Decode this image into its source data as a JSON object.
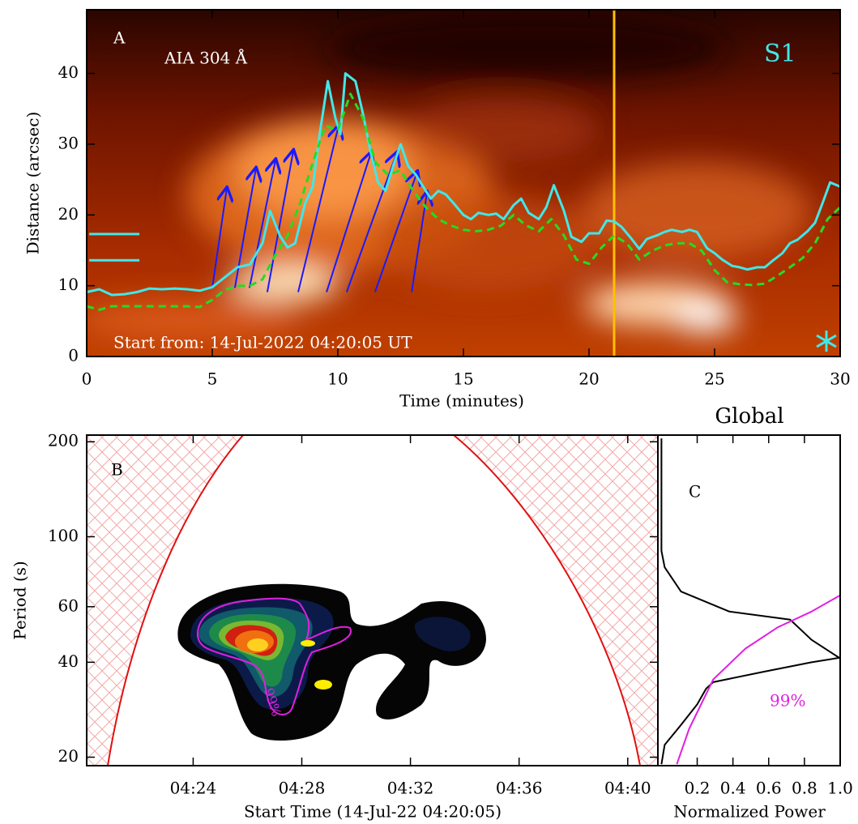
{
  "chart_data": [
    {
      "type": "line",
      "label": "A",
      "annotations": [
        {
          "text": "AIA 304 Å",
          "color": "#ffffff"
        },
        {
          "text": "S1",
          "color": "#40e8e8"
        },
        {
          "text": "Start from: 14-Jul-2022 04:20:05 UT",
          "color": "#ffffff"
        }
      ],
      "xlabel": "Time (minutes)",
      "ylabel": "Distance (arcsec)",
      "xlim": [
        0,
        30
      ],
      "ylim": [
        0,
        49
      ],
      "xticks": [
        0,
        5,
        10,
        15,
        20,
        25,
        30
      ],
      "yticks": [
        0,
        10,
        20,
        30,
        40
      ],
      "series": [
        {
          "color": "#40e8e8",
          "style": "solid",
          "x": [
            0,
            0.5,
            1,
            1.5,
            2,
            2.5,
            3,
            3.5,
            4,
            4.5,
            5,
            5.5,
            6,
            6.5,
            7,
            7.3,
            7.7,
            8,
            8.3,
            8.7,
            9,
            9.3,
            9.6,
            9.9,
            10.1,
            10.3,
            10.7,
            11,
            11.3,
            11.6,
            11.9,
            12.2,
            12.5,
            12.8,
            13.1,
            13.4,
            13.7,
            14,
            14.3,
            14.6,
            15,
            15.3,
            15.6,
            16,
            16.3,
            16.6,
            17,
            17.3,
            17.6,
            18,
            18.3,
            18.6,
            19,
            19.3,
            19.7,
            20,
            20.4,
            20.7,
            21,
            21.3,
            21.7,
            22,
            22.3,
            22.7,
            23,
            23.3,
            23.7,
            24,
            24.3,
            24.7,
            25,
            25.3,
            25.7,
            26,
            26.3,
            26.7,
            27,
            27.3,
            27.7,
            28,
            28.3,
            28.7,
            29,
            29.3,
            29.6,
            30
          ],
          "values": [
            9.1,
            9.5,
            8.7,
            8.8,
            9.1,
            9.6,
            9.5,
            9.6,
            9.5,
            9.3,
            9.8,
            11.2,
            12.6,
            13,
            16,
            20.6,
            17,
            15.4,
            16,
            21.7,
            24,
            32,
            38.9,
            33.7,
            31.4,
            40,
            38.9,
            34.3,
            29,
            24.6,
            23.4,
            26.9,
            30,
            26.9,
            25.7,
            24,
            22.3,
            23.4,
            22.9,
            21.7,
            20,
            19.4,
            20.3,
            20,
            20.2,
            19.4,
            21.4,
            22.3,
            20.3,
            19.4,
            21.1,
            24.2,
            20.6,
            16.9,
            16.2,
            17.4,
            17.4,
            19.2,
            19.1,
            18.3,
            16.6,
            15.2,
            16.6,
            17.1,
            17.6,
            17.9,
            17.6,
            17.9,
            17.6,
            15.3,
            14.6,
            13.7,
            12.8,
            12.6,
            12.3,
            12.6,
            12.6,
            13.5,
            14.6,
            16,
            16.5,
            17.7,
            18.9,
            21.7,
            24.6,
            24
          ]
        },
        {
          "color": "#22dd22",
          "style": "dashed",
          "x": [
            0,
            0.5,
            1,
            2,
            3,
            4,
            4.5,
            5,
            5.5,
            6,
            6.5,
            7,
            7.5,
            8,
            8.5,
            9,
            9.5,
            10,
            10.5,
            11,
            11.5,
            12,
            12.5,
            13,
            13.5,
            14,
            14.5,
            15,
            15.5,
            16,
            16.5,
            17,
            17.5,
            18,
            18.5,
            19,
            19.5,
            20,
            20.5,
            21,
            21.5,
            22,
            22.5,
            23,
            23.5,
            24,
            24.5,
            25,
            25.5,
            26,
            26.5,
            27,
            27.5,
            28,
            28.5,
            29,
            29.5,
            30
          ],
          "values": [
            7.1,
            6.6,
            7.1,
            7.1,
            7.1,
            7.1,
            7,
            8,
            9.4,
            10,
            10,
            10.9,
            14.3,
            17.1,
            21.7,
            27.4,
            32.6,
            32,
            37.1,
            33.7,
            27.4,
            25.7,
            26.3,
            23.4,
            21.1,
            19.4,
            18.5,
            17.9,
            17.7,
            17.9,
            18.5,
            20,
            18.5,
            17.7,
            19.4,
            17.1,
            13.7,
            13.1,
            15.4,
            17.1,
            16,
            13.7,
            14.9,
            15.7,
            16,
            16,
            14.9,
            12.2,
            10.5,
            10.2,
            10.1,
            10.3,
            11.4,
            12.6,
            13.9,
            16,
            19.4,
            21.1
          ]
        }
      ],
      "vline": {
        "x": 21,
        "color": "#ffc000"
      },
      "arrow_color": "#1a1aff",
      "arrows": [
        {
          "x": [
            5.0,
            5.58
          ],
          "y": [
            9.7,
            23.8
          ]
        },
        {
          "x": [
            5.9,
            6.74
          ],
          "y": [
            9.7,
            26.6
          ]
        },
        {
          "x": [
            6.48,
            7.52
          ],
          "y": [
            9.7,
            27.8
          ]
        },
        {
          "x": [
            7.19,
            8.23
          ],
          "y": [
            9.1,
            29.1
          ]
        },
        {
          "x": [
            8.42,
            10.03
          ],
          "y": [
            9.1,
            32.6
          ]
        },
        {
          "x": [
            9.55,
            11.32
          ],
          "y": [
            9.1,
            28.8
          ]
        },
        {
          "x": [
            10.35,
            12.35
          ],
          "y": [
            9.1,
            28.8
          ]
        },
        {
          "x": [
            11.48,
            13.16
          ],
          "y": [
            9.1,
            26.1
          ]
        },
        {
          "x": [
            12.94,
            13.55
          ],
          "y": [
            9.1,
            23.2
          ]
        }
      ],
      "range_color": "#40e8e8",
      "ranges": [
        {
          "x": [
            0.1,
            2.1
          ],
          "value": 17.3
        },
        {
          "x": [
            0.1,
            2.1
          ],
          "value": 13.6
        }
      ]
    },
    {
      "type": "contour",
      "label": "B",
      "annotations": [
        {
          "text": "99%",
          "color": "#e020e0"
        }
      ],
      "xlabel": "Start Time (14-Jul-22 04:20:05)",
      "ylabel": "Period (s)",
      "xlim": [
        0,
        21.03
      ],
      "ylim": [
        18.8,
        210
      ],
      "log_y": true,
      "xticks": [
        {
          "value": 3.92,
          "label": "04:24"
        },
        {
          "value": 7.92,
          "label": "04:28"
        },
        {
          "value": 11.92,
          "label": "04:32"
        },
        {
          "value": 15.92,
          "label": "04:36"
        },
        {
          "value": 19.92,
          "label": "04:40"
        }
      ],
      "yticks": [
        20,
        40,
        60,
        100,
        200
      ]
    },
    {
      "type": "line",
      "title": "Global",
      "label": "C",
      "annotations": [
        {
          "text": "99%",
          "color": "#e020e0"
        }
      ],
      "xlabel": "Normalized Power",
      "xlim": [
        -0.02,
        1.0
      ],
      "ylim": [
        18.8,
        210
      ],
      "log_y": true,
      "xticks": [
        0.2,
        0.4,
        0.6,
        0.8,
        {
          "value": 1,
          "label": "1.0"
        }
      ],
      "series": [
        {
          "color": "#000000",
          "style": "solid",
          "x": [
            0,
            0,
            0.018,
            0.109,
            0.38,
            0.72,
            0.84,
            0.995,
            0.84,
            0.56,
            0.29,
            0.25,
            0.2,
            0.109,
            0.018,
            0
          ],
          "values": [
            205,
            90.2,
            80,
            67,
            57.9,
            54.6,
            47.1,
            41.3,
            40,
            37.2,
            34.6,
            33,
            29.4,
            25.3,
            21.9,
            19
          ]
        },
        {
          "color": "#e020e0",
          "style": "solid",
          "x": [
            0.086,
            0.155,
            0.29,
            0.47,
            0.65,
            0.84,
            1.0
          ],
          "values": [
            19,
            24.6,
            35.3,
            44.2,
            51.6,
            57.9,
            65.2
          ]
        }
      ]
    }
  ]
}
